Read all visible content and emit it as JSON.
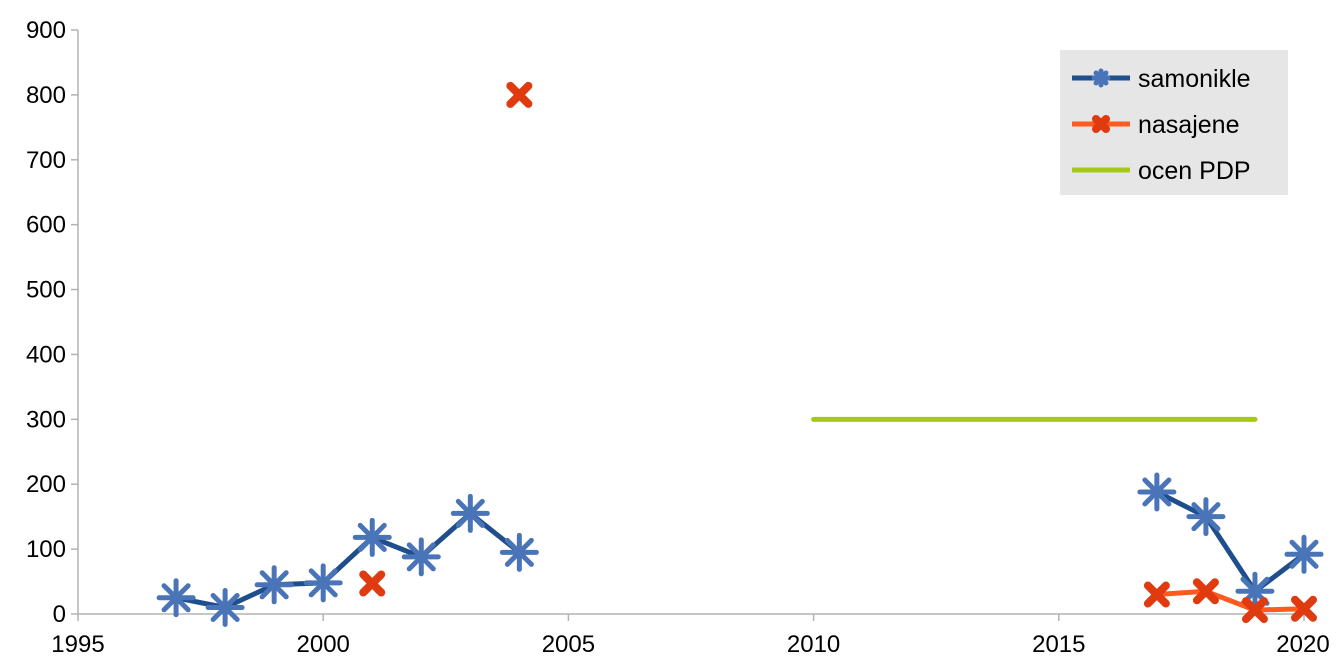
{
  "chart_data": {
    "type": "line",
    "title": "",
    "xlabel": "",
    "ylabel": "",
    "xlim": [
      1995,
      2020
    ],
    "ylim": [
      0,
      900
    ],
    "x_ticks": [
      "1995",
      "2000",
      "2005",
      "2010",
      "2015",
      "2020"
    ],
    "y_ticks": [
      "0",
      "100",
      "200",
      "300",
      "400",
      "500",
      "600",
      "700",
      "800",
      "900"
    ],
    "grid": false,
    "legend_position": "top-right",
    "series": [
      {
        "name": "samonikle",
        "color": "#1f4e8c",
        "marker_color": "#4a74b8",
        "marker": "asterisk",
        "points": [
          {
            "x": 1997,
            "y": 25
          },
          {
            "x": 1998,
            "y": 10
          },
          {
            "x": 1999,
            "y": 45
          },
          {
            "x": 2000,
            "y": 48
          },
          {
            "x": 2001,
            "y": 118
          },
          {
            "x": 2002,
            "y": 88
          },
          {
            "x": 2003,
            "y": 155
          },
          {
            "x": 2004,
            "y": 95
          },
          {
            "x": 2017,
            "y": 188
          },
          {
            "x": 2018,
            "y": 150
          },
          {
            "x": 2019,
            "y": 35
          },
          {
            "x": 2020,
            "y": 92
          }
        ],
        "segments": [
          [
            0,
            1,
            2,
            3,
            4,
            5,
            6,
            7
          ],
          [
            8,
            9,
            10,
            11
          ]
        ]
      },
      {
        "name": "nasajene",
        "color": "#ff5a1f",
        "marker_color": "#e03a10",
        "marker": "x",
        "points": [
          {
            "x": 2001,
            "y": 47
          },
          {
            "x": 2004,
            "y": 800
          },
          {
            "x": 2017,
            "y": 30
          },
          {
            "x": 2018,
            "y": 35
          },
          {
            "x": 2019,
            "y": 6
          },
          {
            "x": 2020,
            "y": 8
          }
        ],
        "segments": [
          [
            2,
            3,
            4,
            5
          ]
        ]
      },
      {
        "name": "ocen PDP",
        "color": "#a6c919",
        "marker": "none",
        "points": [
          {
            "x": 2010,
            "y": 300
          },
          {
            "x": 2019,
            "y": 300
          }
        ],
        "segments": [
          [
            0,
            1
          ]
        ]
      }
    ]
  }
}
